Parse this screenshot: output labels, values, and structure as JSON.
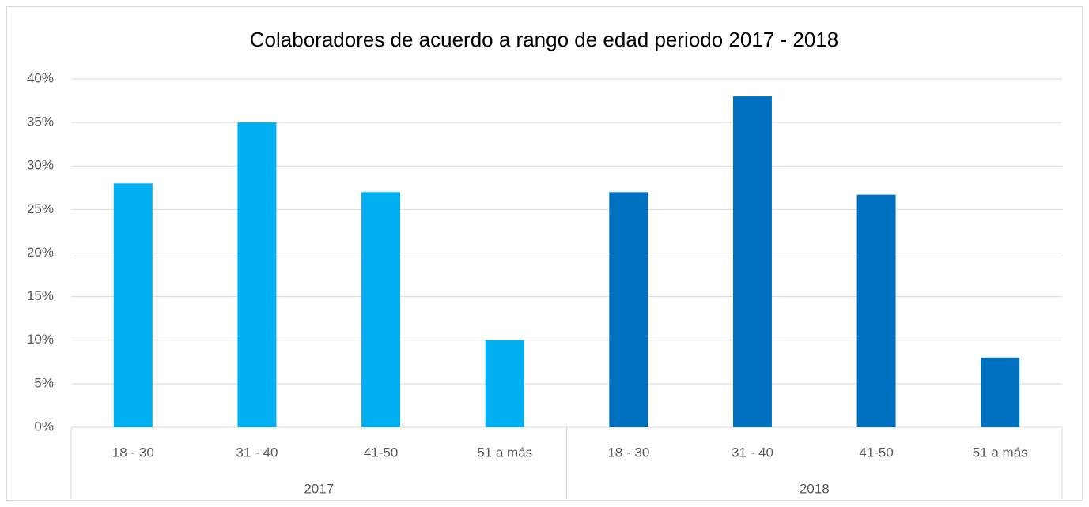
{
  "chart_data": {
    "type": "bar",
    "title": "Colaboradores de acuerdo a rango de edad periodo 2017 - 2018",
    "groups": [
      {
        "name": "2017",
        "color": "#00b0f0",
        "categories": [
          "18 - 30",
          "31 - 40",
          "41-50",
          "51 a más"
        ],
        "values": [
          28,
          35,
          27,
          10
        ]
      },
      {
        "name": "2018",
        "color": "#0070c0",
        "categories": [
          "18 - 30",
          "31 - 40",
          "41-50",
          "51 a más"
        ],
        "values": [
          27,
          38,
          26.7,
          8
        ]
      }
    ],
    "ylim": [
      0,
      40
    ],
    "yticks": [
      {
        "value": 0,
        "label": "0%"
      },
      {
        "value": 5,
        "label": "5%"
      },
      {
        "value": 10,
        "label": "10%"
      },
      {
        "value": 15,
        "label": "15%"
      },
      {
        "value": 20,
        "label": "20%"
      },
      {
        "value": 25,
        "label": "25%"
      },
      {
        "value": 30,
        "label": "30%"
      },
      {
        "value": 35,
        "label": "35%"
      },
      {
        "value": 40,
        "label": "40%"
      }
    ],
    "grid": true
  }
}
